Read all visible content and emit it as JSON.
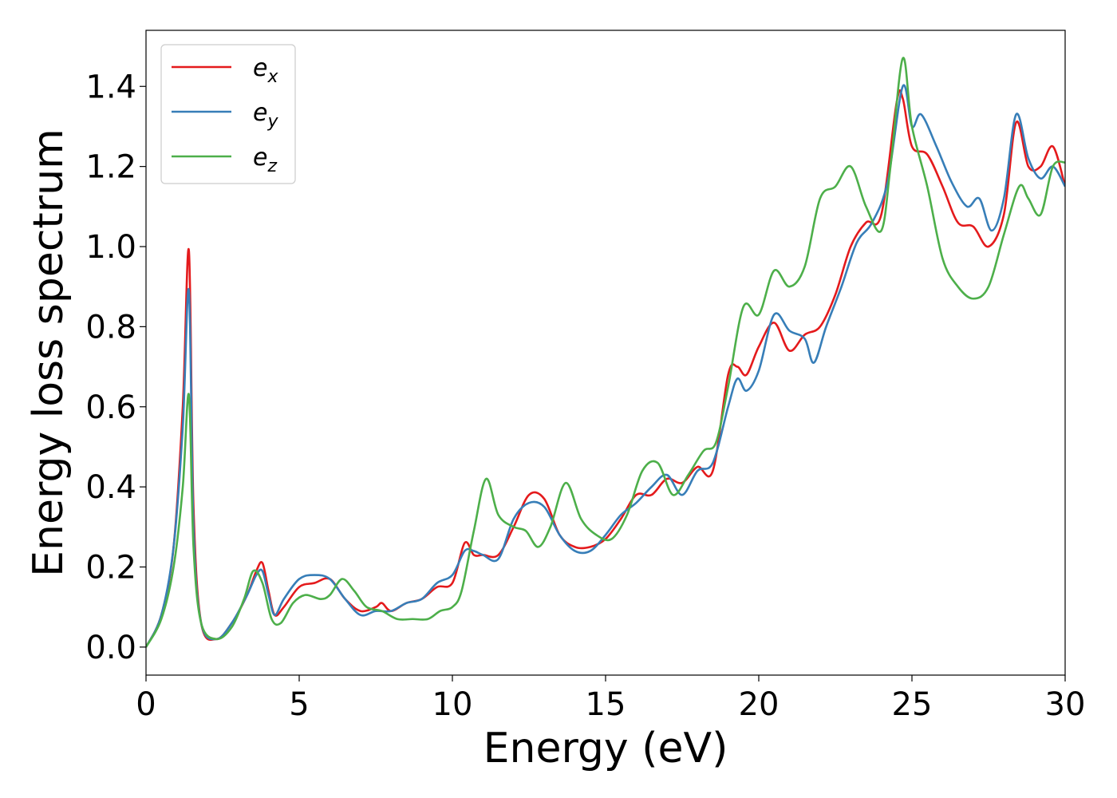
{
  "chart_data": {
    "type": "line",
    "xlabel": "Energy (eV)",
    "ylabel": "Energy loss spectrum",
    "xlim": [
      0,
      30
    ],
    "ylim": [
      -0.07,
      1.54
    ],
    "xticks": [
      0,
      5,
      10,
      15,
      20,
      25,
      30
    ],
    "xtick_labels": [
      "0",
      "5",
      "10",
      "15",
      "20",
      "25",
      "30"
    ],
    "yticks": [
      0.0,
      0.2,
      0.4,
      0.6,
      0.8,
      1.0,
      1.2,
      1.4
    ],
    "ytick_labels": [
      "0.0",
      "0.2",
      "0.4",
      "0.6",
      "0.8",
      "1.0",
      "1.2",
      "1.4"
    ],
    "grid": false,
    "legend_position": "upper-left",
    "series": [
      {
        "name": "e_x",
        "legend_base": "e",
        "legend_sub": "x",
        "color": "#e41a1c",
        "x": [
          0,
          0.5,
          0.9,
          1.2,
          1.4,
          1.55,
          1.8,
          2.3,
          2.8,
          3.3,
          3.6,
          3.8,
          4.0,
          4.2,
          4.5,
          5.0,
          5.5,
          6.0,
          6.5,
          7.0,
          7.5,
          7.7,
          8.0,
          8.5,
          9.0,
          9.5,
          10.0,
          10.4,
          10.7,
          11.0,
          11.5,
          12.0,
          12.5,
          13.0,
          13.5,
          14.0,
          14.5,
          15.0,
          15.5,
          16.0,
          16.5,
          17.0,
          17.5,
          18.0,
          18.5,
          19.0,
          19.3,
          19.6,
          20.0,
          20.5,
          21.0,
          21.5,
          22.0,
          22.5,
          23.0,
          23.5,
          24.0,
          24.5,
          24.7,
          25.0,
          25.5,
          26.0,
          26.5,
          27.0,
          27.5,
          28.0,
          28.4,
          28.8,
          29.2,
          29.6,
          30.0
        ],
        "y": [
          0.0,
          0.08,
          0.25,
          0.6,
          0.99,
          0.35,
          0.06,
          0.02,
          0.06,
          0.13,
          0.19,
          0.21,
          0.14,
          0.08,
          0.1,
          0.15,
          0.16,
          0.17,
          0.12,
          0.09,
          0.1,
          0.11,
          0.09,
          0.11,
          0.12,
          0.15,
          0.16,
          0.26,
          0.23,
          0.23,
          0.23,
          0.3,
          0.38,
          0.37,
          0.28,
          0.25,
          0.25,
          0.27,
          0.32,
          0.38,
          0.38,
          0.42,
          0.41,
          0.45,
          0.44,
          0.68,
          0.7,
          0.68,
          0.75,
          0.81,
          0.74,
          0.78,
          0.8,
          0.88,
          1.0,
          1.06,
          1.08,
          1.36,
          1.37,
          1.25,
          1.23,
          1.15,
          1.06,
          1.05,
          1.0,
          1.08,
          1.31,
          1.2,
          1.2,
          1.25,
          1.15
        ]
      },
      {
        "name": "e_y",
        "legend_base": "e",
        "legend_sub": "y",
        "color": "#377eb8",
        "x": [
          0,
          0.5,
          0.9,
          1.2,
          1.4,
          1.55,
          1.8,
          2.3,
          2.8,
          3.3,
          3.6,
          3.8,
          4.0,
          4.2,
          4.5,
          5.0,
          5.5,
          6.0,
          6.5,
          7.0,
          7.5,
          8.0,
          8.5,
          9.0,
          9.5,
          10.0,
          10.4,
          10.7,
          11.0,
          11.5,
          12.0,
          12.5,
          13.0,
          13.5,
          14.0,
          14.5,
          15.0,
          15.5,
          16.0,
          16.5,
          17.0,
          17.5,
          18.0,
          18.5,
          19.0,
          19.3,
          19.6,
          20.0,
          20.5,
          21.0,
          21.5,
          21.8,
          22.2,
          22.7,
          23.2,
          23.7,
          24.2,
          24.7,
          25.0,
          25.3,
          25.8,
          26.3,
          26.8,
          27.2,
          27.6,
          28.0,
          28.4,
          28.8,
          29.2,
          29.6,
          30.0
        ],
        "y": [
          0.0,
          0.08,
          0.25,
          0.55,
          0.89,
          0.3,
          0.06,
          0.02,
          0.06,
          0.13,
          0.18,
          0.19,
          0.13,
          0.08,
          0.12,
          0.17,
          0.18,
          0.17,
          0.12,
          0.08,
          0.09,
          0.09,
          0.11,
          0.12,
          0.16,
          0.18,
          0.24,
          0.24,
          0.23,
          0.22,
          0.32,
          0.36,
          0.35,
          0.28,
          0.24,
          0.24,
          0.28,
          0.33,
          0.36,
          0.4,
          0.43,
          0.38,
          0.44,
          0.46,
          0.6,
          0.67,
          0.64,
          0.69,
          0.83,
          0.79,
          0.77,
          0.71,
          0.8,
          0.9,
          1.01,
          1.06,
          1.16,
          1.4,
          1.3,
          1.33,
          1.25,
          1.16,
          1.1,
          1.12,
          1.04,
          1.12,
          1.33,
          1.22,
          1.17,
          1.2,
          1.15
        ]
      },
      {
        "name": "e_z",
        "legend_base": "e",
        "legend_sub": "z",
        "color": "#4daf4a",
        "x": [
          0,
          0.5,
          0.9,
          1.2,
          1.4,
          1.55,
          1.8,
          2.3,
          2.8,
          3.2,
          3.5,
          3.8,
          4.1,
          4.4,
          4.8,
          5.2,
          5.7,
          6.0,
          6.4,
          6.8,
          7.2,
          7.7,
          8.2,
          8.7,
          9.2,
          9.6,
          10.0,
          10.3,
          10.7,
          11.1,
          11.5,
          12.0,
          12.4,
          12.8,
          13.2,
          13.7,
          14.2,
          14.7,
          15.2,
          15.7,
          16.2,
          16.7,
          17.2,
          17.7,
          18.2,
          18.6,
          19.0,
          19.5,
          20.0,
          20.5,
          21.0,
          21.5,
          22.0,
          22.5,
          23.0,
          23.5,
          24.0,
          24.3,
          24.7,
          25.0,
          25.5,
          26.0,
          26.5,
          27.0,
          27.5,
          28.0,
          28.5,
          28.8,
          29.2,
          29.6,
          30.0
        ],
        "y": [
          0.0,
          0.07,
          0.2,
          0.4,
          0.63,
          0.25,
          0.06,
          0.02,
          0.05,
          0.12,
          0.19,
          0.16,
          0.07,
          0.06,
          0.11,
          0.13,
          0.12,
          0.13,
          0.17,
          0.14,
          0.1,
          0.09,
          0.07,
          0.07,
          0.07,
          0.09,
          0.1,
          0.14,
          0.29,
          0.42,
          0.33,
          0.3,
          0.29,
          0.25,
          0.3,
          0.41,
          0.32,
          0.28,
          0.27,
          0.33,
          0.44,
          0.46,
          0.38,
          0.43,
          0.49,
          0.51,
          0.65,
          0.85,
          0.83,
          0.94,
          0.9,
          0.95,
          1.12,
          1.15,
          1.2,
          1.1,
          1.04,
          1.2,
          1.47,
          1.3,
          1.15,
          0.97,
          0.9,
          0.87,
          0.9,
          1.03,
          1.15,
          1.12,
          1.08,
          1.2,
          1.21
        ]
      }
    ]
  }
}
